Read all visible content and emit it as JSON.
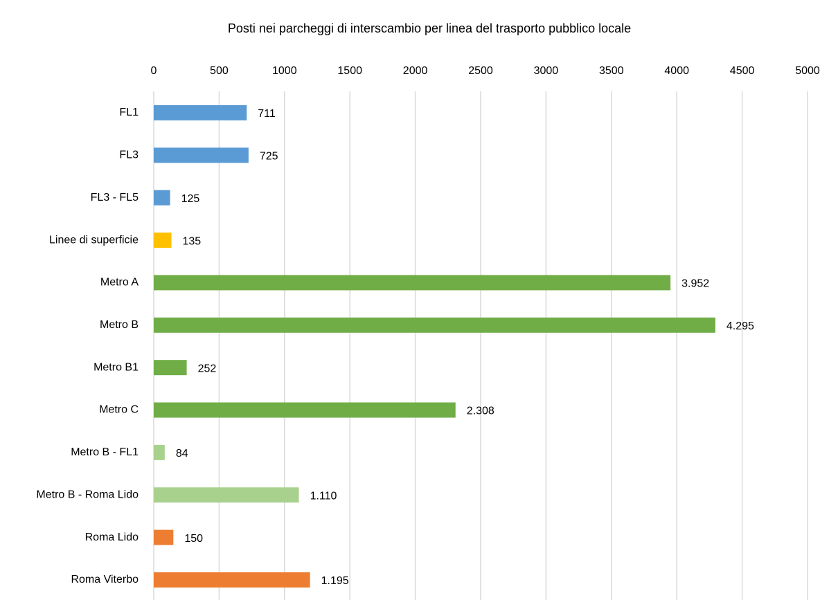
{
  "chart_data": {
    "type": "barh",
    "title": "Posti nei parcheggi di interscambio per linea del trasporto pubblico locale",
    "categories": [
      "FL1",
      "FL3",
      "FL3 - FL5",
      "Linee di superficie",
      "Metro A",
      "Metro B",
      "Metro B1",
      "Metro C",
      "Metro B - FL1",
      "Metro B - Roma Lido",
      "Roma Lido",
      "Roma Viterbo"
    ],
    "values": [
      711,
      725,
      125,
      135,
      3952,
      4295,
      252,
      2308,
      84,
      1110,
      150,
      1195
    ],
    "value_labels": [
      "711",
      "725",
      "125",
      "135",
      "3.952",
      "4.295",
      "252",
      "2.308",
      "84",
      "1.110",
      "150",
      "1.195"
    ],
    "colors": [
      "#5b9bd5",
      "#5b9bd5",
      "#5b9bd5",
      "#ffc000",
      "#70ad47",
      "#70ad47",
      "#70ad47",
      "#70ad47",
      "#a9d18e",
      "#a9d18e",
      "#ed7d31",
      "#ed7d31"
    ],
    "xlim": [
      0,
      5000
    ],
    "xticks": [
      0,
      500,
      1000,
      1500,
      2000,
      2500,
      3000,
      3500,
      4000,
      4500,
      5000
    ],
    "grid": true
  }
}
